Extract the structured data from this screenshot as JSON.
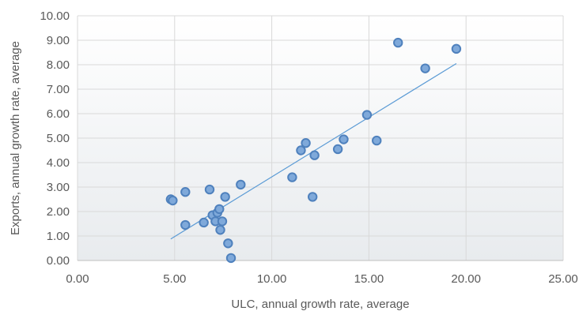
{
  "chart_data": {
    "type": "scatter",
    "title": "",
    "xlabel": "ULC, annual growth rate, average",
    "ylabel": "Exports, annual growth rate, average",
    "xlim": [
      0,
      25
    ],
    "ylim": [
      0,
      10
    ],
    "x_ticks": [
      "0.00",
      "5.00",
      "10.00",
      "15.00",
      "20.00",
      "25.00"
    ],
    "y_ticks": [
      "0.00",
      "1.00",
      "2.00",
      "3.00",
      "4.00",
      "5.00",
      "6.00",
      "7.00",
      "8.00",
      "9.00",
      "10.00"
    ],
    "grid": true,
    "legend": "none",
    "marker_color": "#7fa9da",
    "marker_edge_color": "#4f81bd",
    "trendline": {
      "type": "linear",
      "x": [
        4.8,
        19.5
      ],
      "y": [
        0.88,
        8.05
      ],
      "color": "#5b9bd5"
    },
    "points": [
      {
        "x": 4.8,
        "y": 2.5
      },
      {
        "x": 4.9,
        "y": 2.45
      },
      {
        "x": 5.55,
        "y": 2.8
      },
      {
        "x": 5.55,
        "y": 1.45
      },
      {
        "x": 6.5,
        "y": 1.55
      },
      {
        "x": 6.8,
        "y": 2.9
      },
      {
        "x": 6.95,
        "y": 1.85
      },
      {
        "x": 7.1,
        "y": 1.6
      },
      {
        "x": 7.2,
        "y": 1.95
      },
      {
        "x": 7.3,
        "y": 2.1
      },
      {
        "x": 7.35,
        "y": 1.25
      },
      {
        "x": 7.45,
        "y": 1.6
      },
      {
        "x": 7.6,
        "y": 2.6
      },
      {
        "x": 7.75,
        "y": 0.7
      },
      {
        "x": 7.9,
        "y": 0.1
      },
      {
        "x": 8.4,
        "y": 3.1
      },
      {
        "x": 11.05,
        "y": 3.4
      },
      {
        "x": 11.5,
        "y": 4.5
      },
      {
        "x": 11.75,
        "y": 4.8
      },
      {
        "x": 12.1,
        "y": 2.6
      },
      {
        "x": 12.2,
        "y": 4.3
      },
      {
        "x": 13.4,
        "y": 4.55
      },
      {
        "x": 13.7,
        "y": 4.95
      },
      {
        "x": 14.9,
        "y": 5.95
      },
      {
        "x": 15.4,
        "y": 4.9
      },
      {
        "x": 16.5,
        "y": 8.9
      },
      {
        "x": 17.9,
        "y": 7.85
      },
      {
        "x": 19.5,
        "y": 8.65
      }
    ]
  }
}
